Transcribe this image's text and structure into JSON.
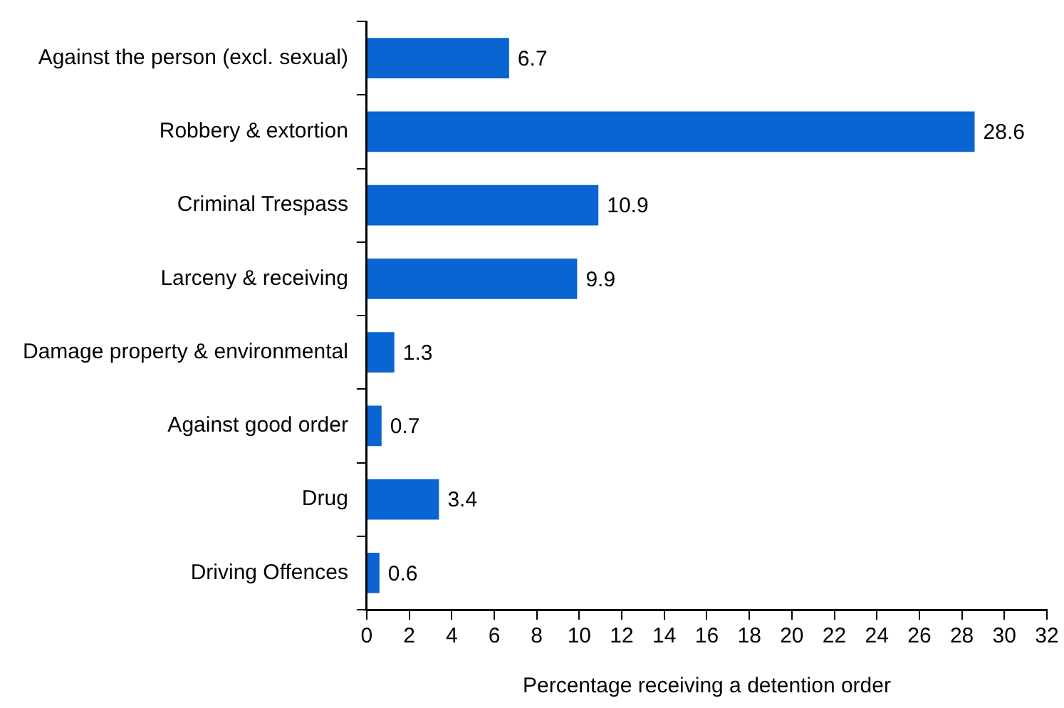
{
  "chart_data": {
    "type": "bar",
    "orientation": "horizontal",
    "xlabel": "Percentage receiving a detention order",
    "categories": [
      "Against the person (excl. sexual)",
      "Robbery & extortion",
      "Criminal Trespass",
      "Larceny & receiving",
      "Damage property & environmental",
      "Against good order",
      "Drug",
      "Driving Offences"
    ],
    "values": [
      6.7,
      28.6,
      10.9,
      9.9,
      1.3,
      0.7,
      3.4,
      0.6
    ],
    "color": "#0a64d2",
    "xlim": [
      0,
      32
    ],
    "xticks": [
      0,
      2,
      4,
      6,
      8,
      10,
      12,
      14,
      16,
      18,
      20,
      22,
      24,
      26,
      28,
      30,
      32
    ],
    "data_labels": true,
    "grid": false,
    "legend": false
  }
}
